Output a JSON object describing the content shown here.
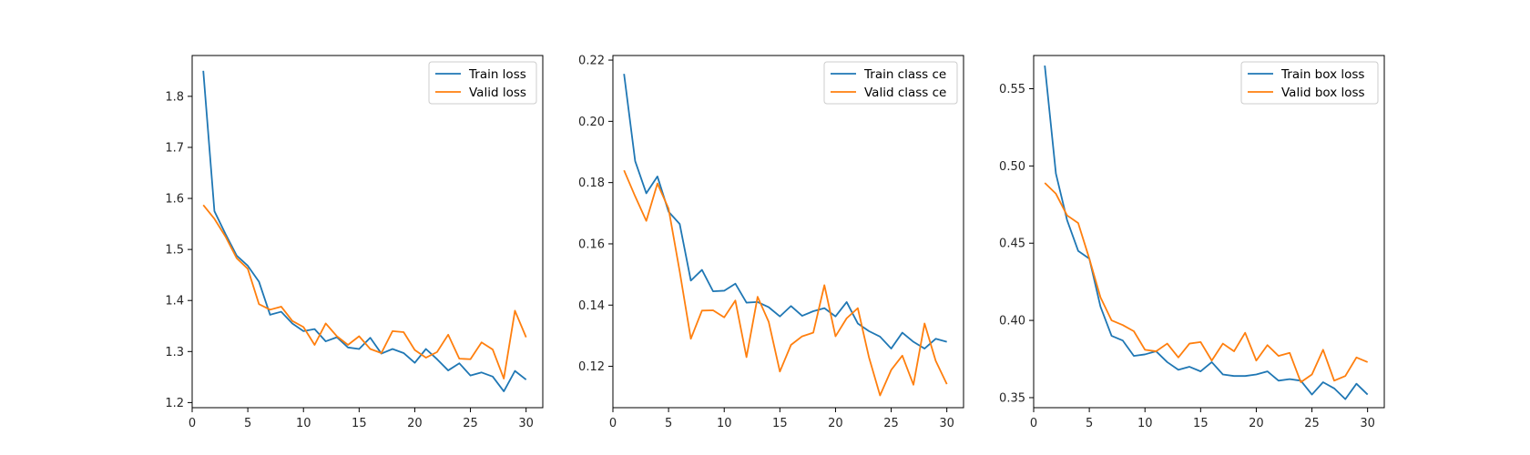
{
  "colors": {
    "train": "#1f77b4",
    "valid": "#ff7f0e"
  },
  "chart_data": [
    {
      "type": "line",
      "x": [
        1,
        2,
        3,
        4,
        5,
        6,
        7,
        8,
        9,
        10,
        11,
        12,
        13,
        14,
        15,
        16,
        17,
        18,
        19,
        20,
        21,
        22,
        23,
        24,
        25,
        26,
        27,
        28,
        29,
        30
      ],
      "xlim": [
        0,
        31.5
      ],
      "xticks": [
        0,
        5,
        10,
        15,
        20,
        25,
        30
      ],
      "ylim": [
        1.19,
        1.88
      ],
      "yticks": [
        1.2,
        1.3,
        1.4,
        1.5,
        1.6,
        1.7,
        1.8
      ],
      "ytick_labels": [
        "1.2",
        "1.3",
        "1.4",
        "1.5",
        "1.6",
        "1.7",
        "1.8"
      ],
      "legend": "top-right",
      "series": [
        {
          "name": "Train loss",
          "color": "#1f77b4",
          "values": [
            1.85,
            1.575,
            1.53,
            1.488,
            1.468,
            1.437,
            1.372,
            1.378,
            1.355,
            1.34,
            1.344,
            1.32,
            1.328,
            1.308,
            1.305,
            1.327,
            1.296,
            1.305,
            1.297,
            1.278,
            1.305,
            1.285,
            1.263,
            1.277,
            1.253,
            1.259,
            1.251,
            1.222,
            1.262,
            1.245
          ]
        },
        {
          "name": "Valid loss",
          "color": "#ff7f0e",
          "values": [
            1.587,
            1.56,
            1.525,
            1.483,
            1.462,
            1.393,
            1.382,
            1.388,
            1.36,
            1.348,
            1.313,
            1.355,
            1.33,
            1.313,
            1.33,
            1.305,
            1.297,
            1.34,
            1.338,
            1.303,
            1.288,
            1.299,
            1.333,
            1.286,
            1.285,
            1.318,
            1.304,
            1.247,
            1.38,
            1.328
          ]
        }
      ]
    },
    {
      "type": "line",
      "x": [
        1,
        2,
        3,
        4,
        5,
        6,
        7,
        8,
        9,
        10,
        11,
        12,
        13,
        14,
        15,
        16,
        17,
        18,
        19,
        20,
        21,
        22,
        23,
        24,
        25,
        26,
        27,
        28,
        29,
        30
      ],
      "xlim": [
        0,
        31.5
      ],
      "xticks": [
        0,
        5,
        10,
        15,
        20,
        25,
        30
      ],
      "ylim": [
        0.1065,
        0.2215
      ],
      "yticks": [
        0.12,
        0.14,
        0.16,
        0.18,
        0.2,
        0.22
      ],
      "ytick_labels": [
        "0.12",
        "0.14",
        "0.16",
        "0.18",
        "0.20",
        "0.22"
      ],
      "legend": "top-right",
      "series": [
        {
          "name": "Train class ce",
          "color": "#1f77b4",
          "values": [
            0.2155,
            0.187,
            0.1765,
            0.182,
            0.1705,
            0.1665,
            0.148,
            0.1515,
            0.1445,
            0.1447,
            0.147,
            0.1408,
            0.141,
            0.1393,
            0.1363,
            0.1397,
            0.1365,
            0.138,
            0.139,
            0.1363,
            0.141,
            0.134,
            0.1315,
            0.1297,
            0.1258,
            0.131,
            0.128,
            0.1258,
            0.129,
            0.128
          ]
        },
        {
          "name": "Valid class ce",
          "color": "#ff7f0e",
          "values": [
            0.184,
            0.1755,
            0.1675,
            0.1797,
            0.1715,
            0.151,
            0.129,
            0.1382,
            0.1383,
            0.136,
            0.1415,
            0.123,
            0.1427,
            0.1345,
            0.1183,
            0.127,
            0.1298,
            0.131,
            0.1465,
            0.1298,
            0.1357,
            0.139,
            0.123,
            0.1105,
            0.1188,
            0.1235,
            0.114,
            0.134,
            0.1218,
            0.1142
          ]
        }
      ]
    },
    {
      "type": "line",
      "x": [
        1,
        2,
        3,
        4,
        5,
        6,
        7,
        8,
        9,
        10,
        11,
        12,
        13,
        14,
        15,
        16,
        17,
        18,
        19,
        20,
        21,
        22,
        23,
        24,
        25,
        26,
        27,
        28,
        29,
        30
      ],
      "xlim": [
        0,
        31.5
      ],
      "xticks": [
        0,
        5,
        10,
        15,
        20,
        25,
        30
      ],
      "ylim": [
        0.3435,
        0.5715
      ],
      "yticks": [
        0.35,
        0.4,
        0.45,
        0.5,
        0.55
      ],
      "ytick_labels": [
        "0.35",
        "0.40",
        "0.45",
        "0.50",
        "0.55"
      ],
      "legend": "top-right",
      "series": [
        {
          "name": "Train box loss",
          "color": "#1f77b4",
          "values": [
            0.565,
            0.495,
            0.465,
            0.445,
            0.44,
            0.409,
            0.39,
            0.387,
            0.377,
            0.378,
            0.38,
            0.373,
            0.368,
            0.37,
            0.367,
            0.373,
            0.365,
            0.364,
            0.364,
            0.365,
            0.367,
            0.361,
            0.362,
            0.361,
            0.352,
            0.36,
            0.356,
            0.349,
            0.359,
            0.352
          ]
        },
        {
          "name": "Valid box loss",
          "color": "#ff7f0e",
          "values": [
            0.489,
            0.482,
            0.468,
            0.463,
            0.44,
            0.415,
            0.4,
            0.397,
            0.393,
            0.381,
            0.38,
            0.385,
            0.376,
            0.385,
            0.386,
            0.374,
            0.385,
            0.38,
            0.392,
            0.374,
            0.384,
            0.377,
            0.379,
            0.36,
            0.365,
            0.381,
            0.361,
            0.364,
            0.376,
            0.373
          ]
        }
      ]
    }
  ]
}
